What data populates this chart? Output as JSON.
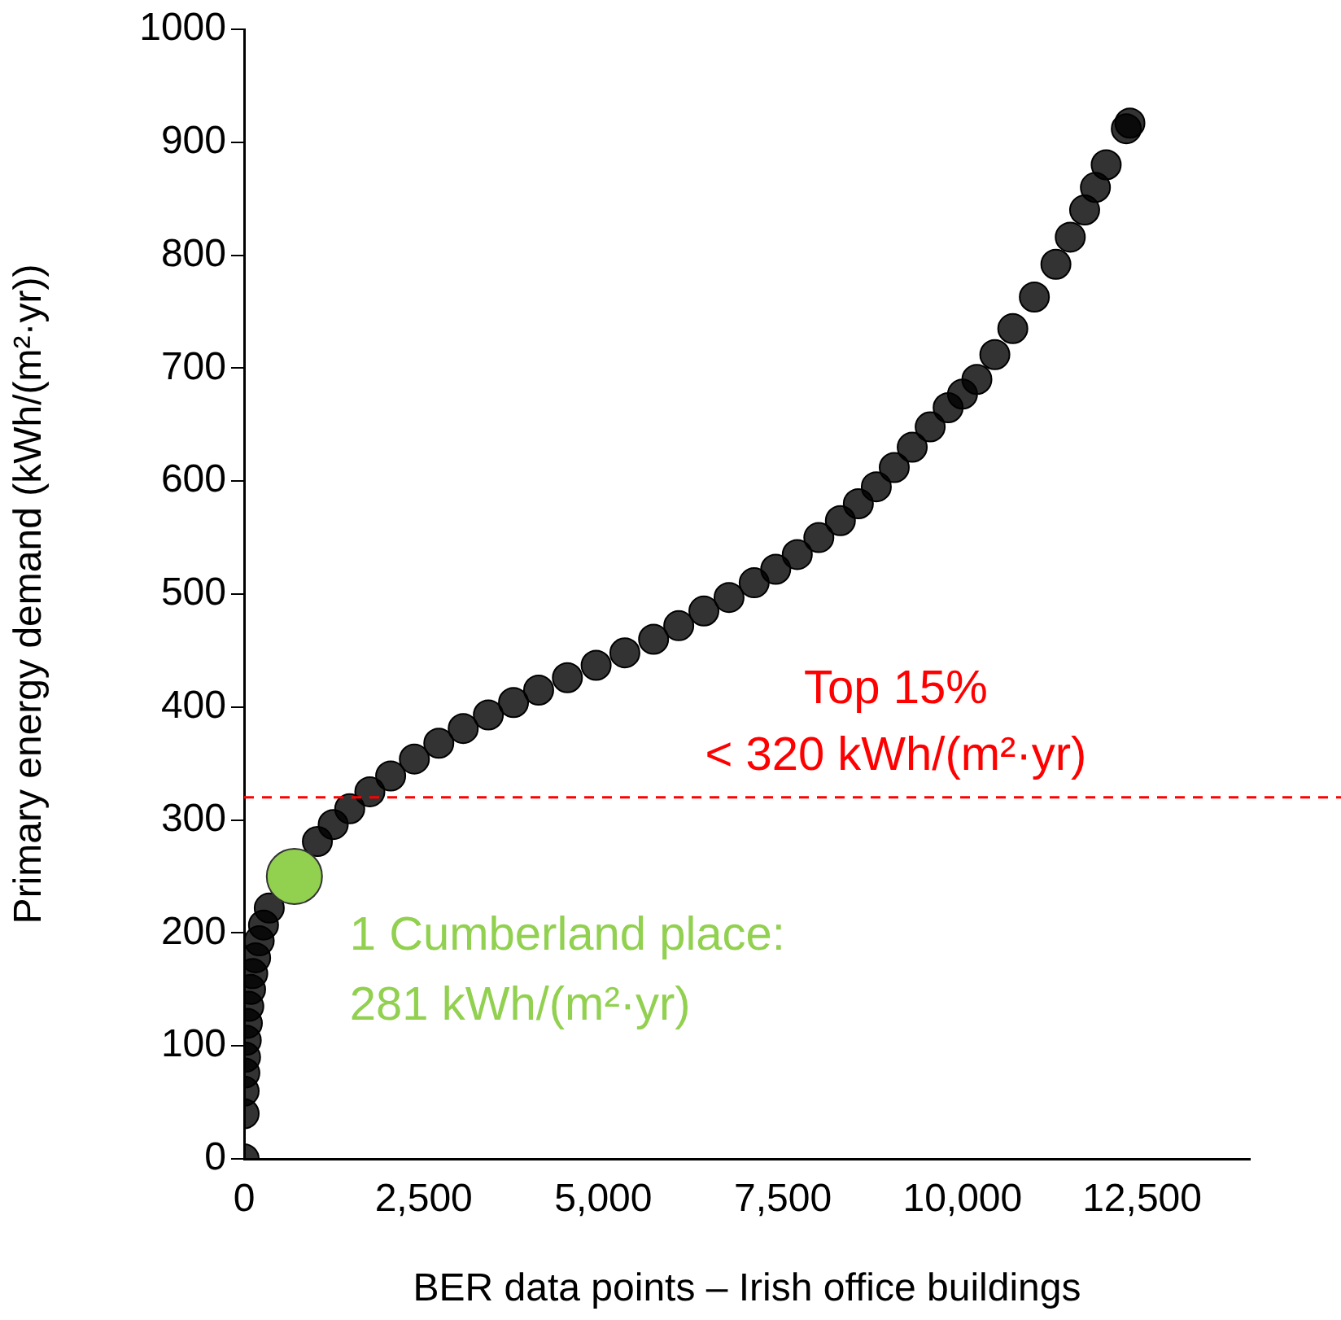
{
  "chart_data": {
    "type": "scatter",
    "xlabel": "BER data points – Irish office buildings",
    "ylabel": "Primary energy demand (kWh/(m²·yr))",
    "series": [
      {
        "color": "#000000",
        "x": [
          0,
          0,
          0,
          10,
          20,
          30,
          45,
          65,
          90,
          120,
          160,
          210,
          270,
          350,
          1020,
          1240,
          1470,
          1750,
          2040,
          2370,
          2710,
          3050,
          3400,
          3750,
          4100,
          4500,
          4900,
          5300,
          5700,
          6050,
          6400,
          6750,
          7100,
          7400,
          7700,
          8000,
          8300,
          8550,
          8800,
          9050,
          9300,
          9550,
          9800,
          10000,
          10200,
          10450,
          10700,
          11000,
          11300,
          11500,
          11700,
          11850,
          12000,
          12280,
          12330
        ],
        "values": [
          0,
          40,
          60,
          76,
          90,
          105,
          120,
          135,
          150,
          164,
          178,
          193,
          207,
          222,
          281,
          296,
          310,
          325,
          339,
          354,
          368,
          381,
          393,
          404,
          415,
          426,
          437,
          448,
          460,
          472,
          485,
          497,
          510,
          522,
          535,
          550,
          565,
          580,
          595,
          612,
          630,
          648,
          665,
          677,
          690,
          712,
          735,
          763,
          792,
          816,
          840,
          860,
          880,
          912,
          917
        ]
      },
      {
        "color": "#92d050",
        "x": [
          700
        ],
        "values": [
          250
        ]
      }
    ],
    "xlim": [
      0,
      14000
    ],
    "xticks": [
      0,
      {
        "value": 2500,
        "label": "2,500"
      },
      {
        "value": 5000,
        "label": "5,000"
      },
      {
        "value": 7500,
        "label": "7,500"
      },
      {
        "value": 10000,
        "label": "10,000"
      },
      {
        "value": 12500,
        "label": "12,500"
      }
    ],
    "ylim": [
      0,
      1000
    ],
    "yticks": [
      0,
      100,
      200,
      300,
      400,
      500,
      600,
      700,
      800,
      900,
      1000
    ],
    "ref_lines": [
      {
        "axis": "y",
        "value": 320,
        "color": "#ff0000",
        "line_style": "dashed"
      }
    ],
    "annotations": [
      "Top 15%",
      "< 320 kWh/(m²·yr)",
      "1 Cumberland place:",
      "281 kWh/(m²·yr)"
    ],
    "grid": false,
    "legend": false,
    "marker": "circle"
  }
}
